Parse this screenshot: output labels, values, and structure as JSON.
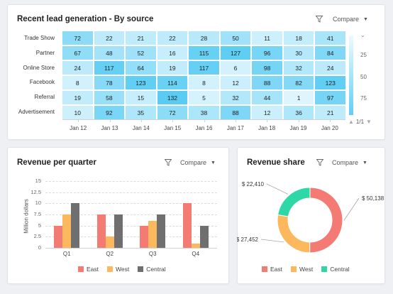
{
  "heatmap": {
    "title": "Recent lead generation - By source",
    "compare_label": "Compare",
    "rows": [
      "Trade Show",
      "Partner",
      "Online Store",
      "Facebook",
      "Referral",
      "Advertisement"
    ],
    "columns": [
      "Jan 12",
      "Jan 13",
      "Jan 14",
      "Jan 15",
      "Jan 16",
      "Jan 17",
      "Jan 18",
      "Jan 19",
      "Jan 20"
    ],
    "values": [
      [
        72,
        22,
        21,
        22,
        28,
        50,
        11,
        18,
        41
      ],
      [
        67,
        48,
        52,
        16,
        115,
        127,
        96,
        30,
        84
      ],
      [
        24,
        117,
        64,
        19,
        117,
        6,
        98,
        32,
        24
      ],
      [
        8,
        78,
        123,
        114,
        8,
        12,
        88,
        82,
        123
      ],
      [
        19,
        58,
        15,
        132,
        5,
        32,
        44,
        1,
        97
      ],
      [
        10,
        92,
        35,
        72,
        38,
        88,
        12,
        36,
        21
      ]
    ],
    "scale_labels": [
      "25",
      "50",
      "75"
    ],
    "page_indicator": "1/1",
    "colors": {
      "low": "#eefaff",
      "high": "#4fc9f2"
    }
  },
  "revenue_quarter": {
    "title": "Revenue per quarter",
    "compare_label": "Compare"
  },
  "revenue_share": {
    "title": "Revenue share",
    "compare_label": "Compare"
  },
  "chart_data": [
    {
      "type": "bar",
      "title": "Revenue per quarter",
      "xlabel": "",
      "ylabel": "Million dollars",
      "ylim": [
        0,
        15
      ],
      "yticks": [
        "0",
        "2.5",
        "5",
        "7.5",
        "10",
        "12.5",
        "15"
      ],
      "categories": [
        "Q1",
        "Q2",
        "Q3",
        "Q4"
      ],
      "series": [
        {
          "name": "East",
          "values": [
            5,
            7.5,
            5,
            10
          ],
          "color": "#f47b73"
        },
        {
          "name": "West",
          "values": [
            7.5,
            2.5,
            6,
            1
          ],
          "color": "#fbb85c"
        },
        {
          "name": "Central",
          "values": [
            10,
            7.5,
            7.5,
            5
          ],
          "color": "#6f6f6f"
        }
      ],
      "legend": "bottom"
    },
    {
      "type": "pie",
      "title": "Revenue share",
      "donut": true,
      "labels": [
        "East",
        "West",
        "Central"
      ],
      "values": [
        50138,
        27452,
        22410
      ],
      "value_labels": [
        "$ 50,138",
        "$ 27,452",
        "$ 22,410"
      ],
      "colors": [
        "#f47b73",
        "#fbb85c",
        "#2ed8a6"
      ],
      "legend": "bottom"
    }
  ]
}
